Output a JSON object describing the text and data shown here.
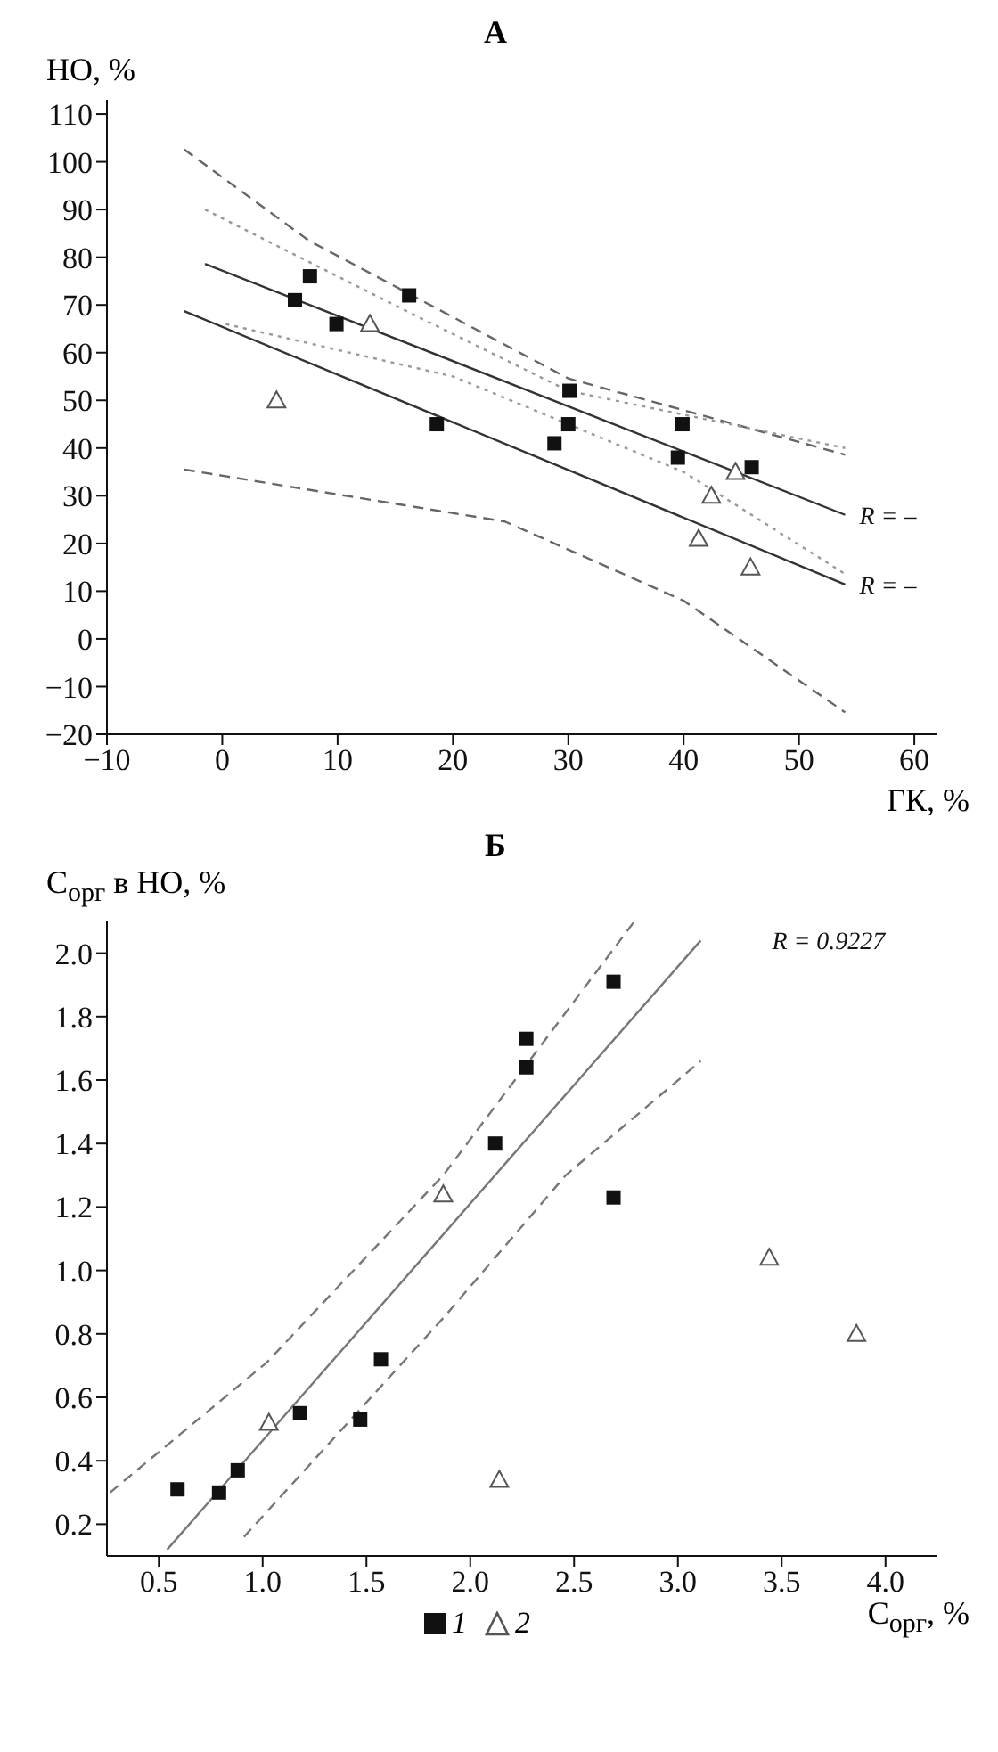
{
  "chart_data": [
    {
      "type": "scatter",
      "title": "А",
      "xlabel": "ГК, %",
      "ylabel": "НО, %",
      "xlim": [
        -10,
        62
      ],
      "ylim": [
        -20,
        113
      ],
      "xticks": [
        -10,
        0,
        10,
        20,
        30,
        40,
        50,
        60
      ],
      "yticks": [
        -20,
        -10,
        0,
        10,
        20,
        30,
        40,
        50,
        60,
        70,
        80,
        90,
        100,
        110
      ],
      "legend": false,
      "annotations": [
        "R = –",
        "R = –"
      ],
      "series": [
        {
          "marker": "square",
          "color": "#111111",
          "x": [
            6.3,
            7.6,
            9.9,
            16.2,
            30.1,
            18.6,
            30,
            28.8,
            39.9,
            39.5,
            45.9
          ],
          "values": [
            71,
            76,
            66,
            72,
            52,
            45,
            45,
            41,
            45,
            38,
            36
          ]
        },
        {
          "marker": "triangle",
          "color": "#555555",
          "x": [
            4.7,
            12.8,
            42.4,
            41.3,
            45.8,
            44.5
          ],
          "values": [
            50,
            66,
            30,
            21,
            15,
            35
          ]
        },
        {
          "type": "line",
          "line_style": "solid",
          "color": "#333333",
          "x": [
            -1.5,
            54
          ],
          "values": [
            78.6,
            26
          ]
        },
        {
          "type": "line",
          "line_style": "solid",
          "color": "#333333",
          "x": [
            -3.3,
            54
          ],
          "values": [
            68.7,
            11.4
          ]
        },
        {
          "type": "line",
          "line_style": "dashed",
          "color": "#666666",
          "x": [
            -3.3,
            7.5,
            30,
            54
          ],
          "values": [
            102.6,
            83.5,
            54.6,
            38.6
          ]
        },
        {
          "type": "line",
          "line_style": "dotted",
          "color": "#999999",
          "x": [
            -1.5,
            16.8,
            30,
            54
          ],
          "values": [
            90,
            67.7,
            52,
            40
          ]
        },
        {
          "type": "line",
          "line_style": "dotted",
          "color": "#999999",
          "x": [
            0.3,
            20,
            40,
            54
          ],
          "values": [
            66,
            55,
            35,
            13.6
          ]
        },
        {
          "type": "line",
          "line_style": "dashed",
          "color": "#666666",
          "x": [
            -3.3,
            24.5,
            40,
            54
          ],
          "values": [
            35.5,
            24.6,
            8,
            -15.4
          ]
        }
      ]
    },
    {
      "type": "scatter",
      "title": "Б",
      "xlabel": "C$_{орг}$, %",
      "ylabel": "C$_{орг}$ в НО, %",
      "xlim": [
        0.25,
        4.25
      ],
      "ylim": [
        0.1,
        2.1
      ],
      "xticks": [
        0.5,
        {
          "value": 1,
          "label": "1.0"
        },
        1.5,
        {
          "value": 2,
          "label": "2.0"
        },
        2.5,
        {
          "value": 3,
          "label": "3.0"
        },
        3.5,
        {
          "value": 4,
          "label": "4.0"
        }
      ],
      "yticks": [
        0.2,
        0.4,
        0.6,
        0.8,
        {
          "value": 1,
          "label": "1.0"
        },
        1.2,
        1.4,
        1.6,
        1.8,
        {
          "value": 2,
          "label": "2.0"
        }
      ],
      "legend": "bottom",
      "annotations": [
        "R = 0.9227"
      ],
      "series": [
        {
          "name": "1",
          "marker": "square",
          "color": "#111111",
          "x": [
            0.59,
            0.79,
            0.88,
            1.18,
            1.47,
            1.57,
            2.69,
            2.12,
            2.27,
            2.27,
            2.69
          ],
          "values": [
            0.31,
            0.3,
            0.37,
            0.55,
            0.53,
            0.72,
            1.23,
            1.4,
            1.64,
            1.73,
            1.91
          ]
        },
        {
          "name": "2",
          "marker": "triangle",
          "color": "#555555",
          "x": [
            1.03,
            1.87,
            2.14,
            3.44,
            3.86
          ],
          "values": [
            0.52,
            1.24,
            0.34,
            1.04,
            0.8
          ]
        },
        {
          "type": "line",
          "line_style": "solid",
          "color": "#777777",
          "x": [
            0.54,
            3.11
          ],
          "values": [
            0.12,
            2.04
          ]
        },
        {
          "type": "line",
          "line_style": "dashed",
          "color": "#777777",
          "x": [
            0.265,
            1.02,
            1.87,
            2.79
          ],
          "values": [
            0.3,
            0.71,
            1.3,
            2.1
          ]
        },
        {
          "type": "line",
          "line_style": "dashed",
          "color": "#777777",
          "x": [
            0.91,
            1.87,
            2.46,
            3.11
          ],
          "values": [
            0.16,
            0.85,
            1.3,
            1.66
          ]
        }
      ]
    }
  ]
}
